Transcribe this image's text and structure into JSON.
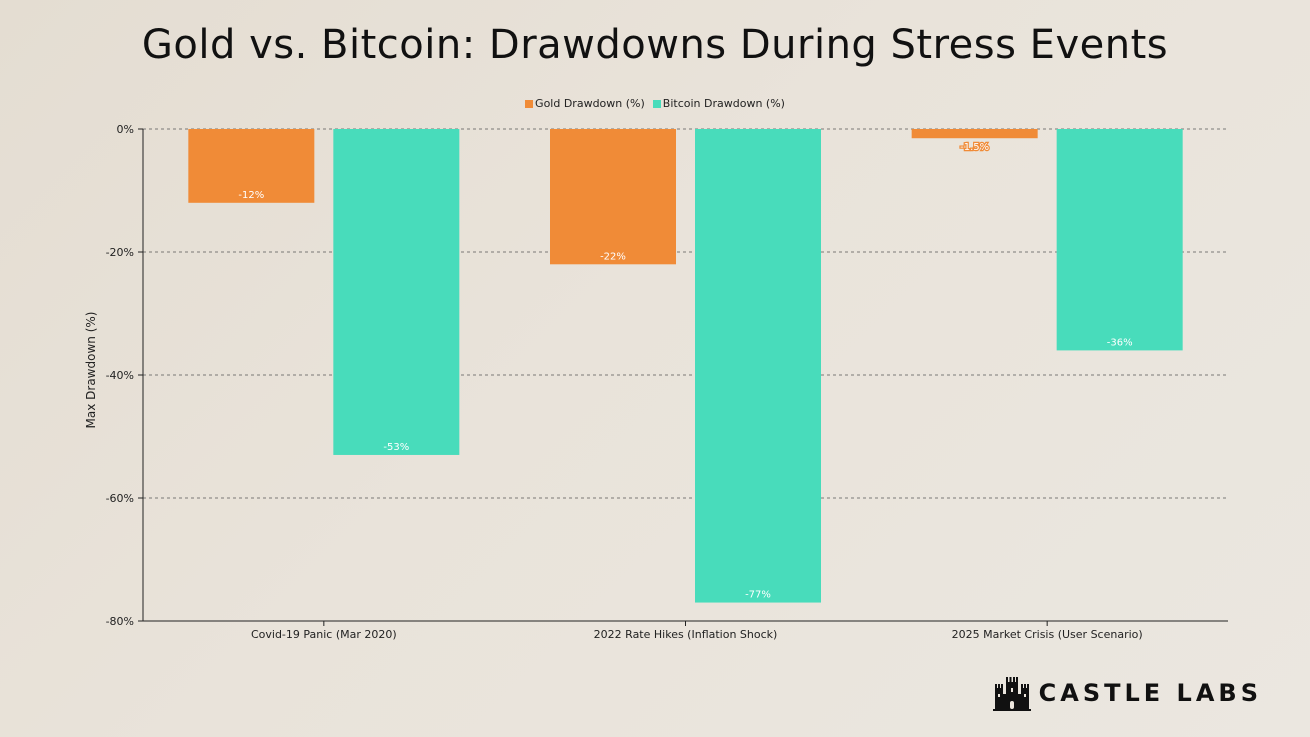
{
  "colors": {
    "gold": "#f08b37",
    "bitcoin": "#48dcbb",
    "axis": "#222222",
    "grid": "#555555"
  },
  "brand": {
    "text": "CASTLE LABS",
    "icon": "castle-icon"
  },
  "chart_data": {
    "type": "bar",
    "title": "Gold vs. Bitcoin: Drawdowns During Stress Events",
    "xlabel": "",
    "ylabel": "Max Drawdown (%)",
    "ylim": [
      -80,
      0
    ],
    "yticks": [
      0,
      -20,
      -40,
      -60,
      -80
    ],
    "ytick_labels": [
      "0%",
      "-20%",
      "-40%",
      "-60%",
      "-80%"
    ],
    "grid": true,
    "legend_position": "top-center",
    "categories": [
      "Covid-19 Panic (Mar 2020)",
      "2022 Rate Hikes (Inflation Shock)",
      "2025 Market Crisis (User Scenario)"
    ],
    "series": [
      {
        "name": "Gold Drawdown (%)",
        "values": [
          -12,
          -22,
          -1.5
        ],
        "labels": [
          "-12%",
          "-22%",
          "-1.5%"
        ]
      },
      {
        "name": "Bitcoin Drawdown (%)",
        "values": [
          -53,
          -77,
          -36
        ],
        "labels": [
          "-53%",
          "-77%",
          "-36%"
        ]
      }
    ]
  }
}
